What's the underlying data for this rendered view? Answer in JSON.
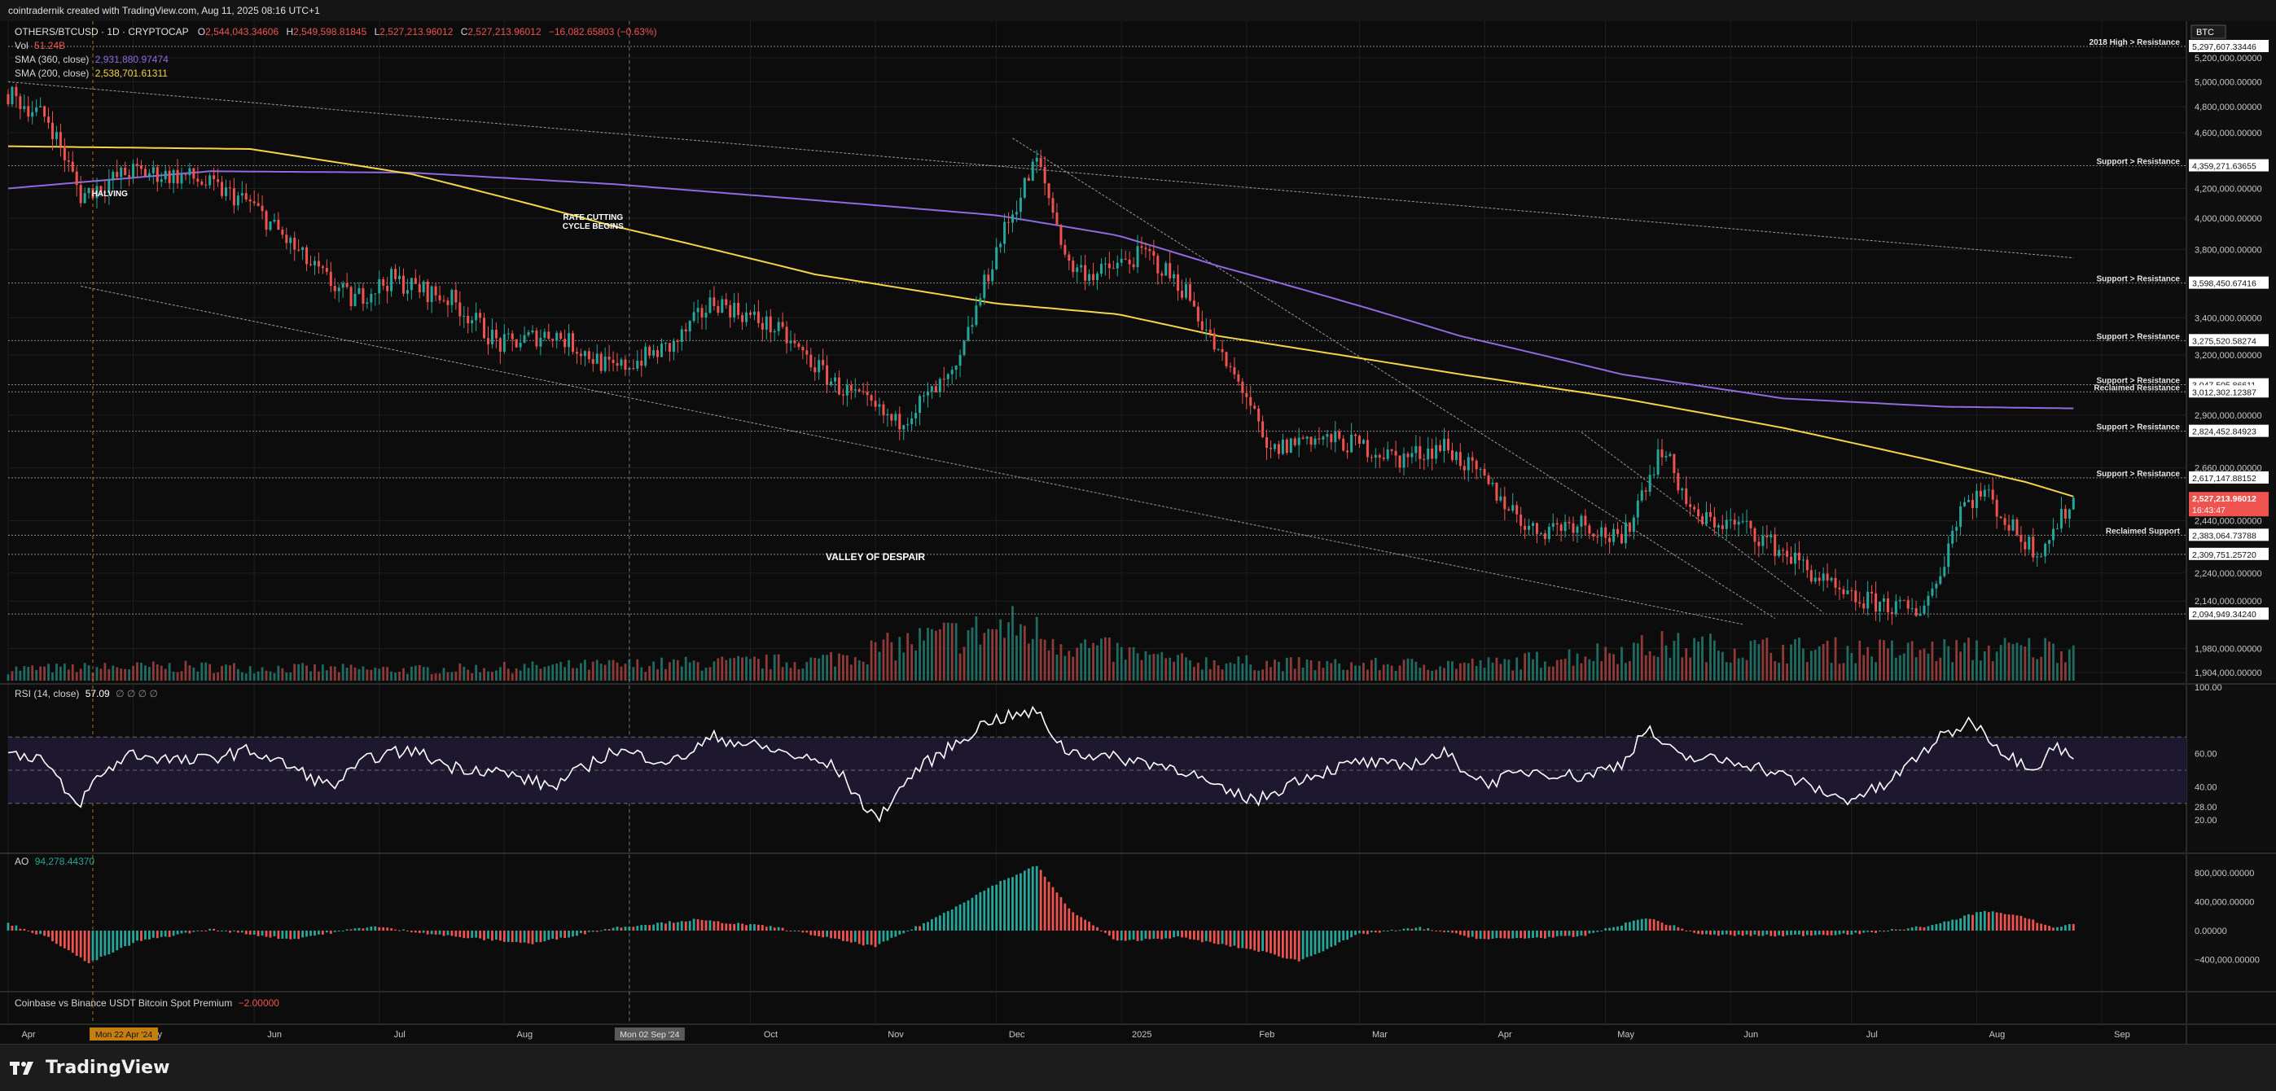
{
  "header": {
    "credit": "cointradernik created with TradingView.com, Aug 11, 2025 08:16 UTC+1"
  },
  "legend": {
    "symbol": "OTHERS/BTCUSD · 1D · CRYPTOCAP",
    "o_label": "O",
    "o": "2,544,043.34606",
    "h_label": "H",
    "h": "2,549,598.81845",
    "l_label": "L",
    "l": "2,527,213.96012",
    "c_label": "C",
    "c": "2,527,213.96012",
    "change": "−16,082.65803 (−0.63%)",
    "vol_label": "Vol",
    "vol": "51.24B",
    "sma360_label": "SMA (360, close)",
    "sma360": "2,931,880.97474",
    "sma200_label": "SMA (200, close)",
    "sma200": "2,538,701.61311",
    "rsi_label": "RSI (14, close)",
    "rsi": "57.09",
    "rsi_extra": "∅ ∅ ∅ ∅",
    "ao_label": "AO",
    "ao": "94,278.44370",
    "premium_label": "Coinbase vs Binance USDT Bitcoin Spot Premium",
    "premium": "−2.00000"
  },
  "footer": {
    "brand": "TradingView"
  },
  "chart_data": {
    "type": "line",
    "price_axis_label": "BTC",
    "price_ticks": [
      "5,200,000.00000",
      "5,000,000.00000",
      "4,800,000.00000",
      "4,600,000.00000",
      "4,200,000.00000",
      "4,000,000.00000",
      "3,800,000.00000",
      "3,400,000.00000",
      "3,200,000.00000",
      "2,900,000.00000",
      "2,660,000.00000",
      "2,440,000.00000",
      "2,240,000.00000",
      "2,140,000.00000",
      "1,980,000.00000",
      "1,904,000.00000"
    ],
    "price_tick_values": [
      5200000,
      5000000,
      4800000,
      4600000,
      4200000,
      4000000,
      3800000,
      3400000,
      3200000,
      2900000,
      2660000,
      2440000,
      2240000,
      2140000,
      1980000,
      1904000
    ],
    "levels": [
      {
        "label": "2018 High > Resistance",
        "value": 5297607,
        "tag": "5,297,607.33446"
      },
      {
        "label": "Support > Resistance",
        "value": 4359271.63655,
        "tag": "4,359,271.63655"
      },
      {
        "label": "Support > Resistance",
        "value": 3598450.67416,
        "tag": "3,598,450.67416"
      },
      {
        "label": "Support > Resistance",
        "value": 3275520.58274,
        "tag": "3,275,520.58274"
      },
      {
        "label": "Support > Resistance",
        "value": 3047505.86611,
        "tag": "3,047,505.86611"
      },
      {
        "label": "Reclaimed Resistance",
        "value": 3012302.12387,
        "tag": "3,012,302.12387"
      },
      {
        "label": "Support > Resistance",
        "value": 2824452.84923,
        "tag": "2,824,452.84923"
      },
      {
        "label": "Support > Resistance",
        "value": 2617147.88152,
        "tag": "2,617,147.88152"
      },
      {
        "label": "Reclaimed Support",
        "value": 2383064.73788,
        "tag": "2,383,064.73788"
      },
      {
        "label": "",
        "value": 2309751.2572,
        "tag": "2,309,751.25720"
      },
      {
        "label": "",
        "value": 2094949.3424,
        "tag": "2,094,949.34240"
      }
    ],
    "current_price": {
      "value": 2527213.96012,
      "tag": "2,527,213.96012",
      "countdown": "16:43:47"
    },
    "annotations": [
      {
        "text": "HALVING",
        "date_index": 5
      },
      {
        "text": "RATE CUTTING\nCYCLE BEGINS",
        "date_index": 145
      },
      {
        "text": "VALLEY OF DESPAIR",
        "date_index": 215
      }
    ],
    "x_labels": [
      "Apr",
      "May",
      "Jun",
      "Jul",
      "Aug",
      "Sep",
      "Oct",
      "Nov",
      "Dec",
      "2025",
      "Feb",
      "Mar",
      "Apr",
      "May",
      "Jun",
      "Jul",
      "Aug",
      "Sep"
    ],
    "x_label_days": [
      0,
      31,
      61,
      92,
      123,
      154,
      184,
      215,
      245,
      276,
      307,
      335,
      366,
      396,
      427,
      457,
      488,
      519
    ],
    "cursor_x_label": "Mon 22 Apr '24",
    "cursor_x_day": 21,
    "cursor2_x_label": "Mon 02 Sep '24",
    "cursor2_x_day": 154,
    "close_anchors": [
      [
        0,
        4900000
      ],
      [
        10,
        4700000
      ],
      [
        18,
        4150000
      ],
      [
        30,
        4320000
      ],
      [
        45,
        4280000
      ],
      [
        60,
        4100000
      ],
      [
        75,
        3700000
      ],
      [
        85,
        3500000
      ],
      [
        95,
        3620000
      ],
      [
        110,
        3500000
      ],
      [
        122,
        3250000
      ],
      [
        135,
        3320000
      ],
      [
        150,
        3120000
      ],
      [
        165,
        3250000
      ],
      [
        175,
        3500000
      ],
      [
        190,
        3340000
      ],
      [
        205,
        3050000
      ],
      [
        220,
        2860000
      ],
      [
        235,
        3100000
      ],
      [
        245,
        3800000
      ],
      [
        255,
        4400000
      ],
      [
        263,
        3700000
      ],
      [
        270,
        3650000
      ],
      [
        282,
        3780000
      ],
      [
        292,
        3550000
      ],
      [
        300,
        3200000
      ],
      [
        307,
        3000000
      ],
      [
        312,
        2720000
      ],
      [
        322,
        2800000
      ],
      [
        335,
        2760000
      ],
      [
        345,
        2700000
      ],
      [
        356,
        2760000
      ],
      [
        366,
        2600000
      ],
      [
        378,
        2400000
      ],
      [
        390,
        2440000
      ],
      [
        400,
        2350000
      ],
      [
        406,
        2600000
      ],
      [
        410,
        2750000
      ],
      [
        418,
        2450000
      ],
      [
        430,
        2420000
      ],
      [
        442,
        2300000
      ],
      [
        455,
        2150000
      ],
      [
        465,
        2130000
      ],
      [
        473,
        2100000
      ],
      [
        478,
        2200000
      ],
      [
        484,
        2500000
      ],
      [
        490,
        2560000
      ],
      [
        496,
        2420000
      ],
      [
        503,
        2320000
      ],
      [
        507,
        2400000
      ],
      [
        512,
        2527214
      ]
    ],
    "sma200_anchors": [
      [
        0,
        4500000
      ],
      [
        60,
        4480000
      ],
      [
        100,
        4300000
      ],
      [
        150,
        3950000
      ],
      [
        200,
        3650000
      ],
      [
        245,
        3480000
      ],
      [
        275,
        3420000
      ],
      [
        300,
        3300000
      ],
      [
        330,
        3200000
      ],
      [
        360,
        3100000
      ],
      [
        400,
        2980000
      ],
      [
        440,
        2840000
      ],
      [
        470,
        2720000
      ],
      [
        500,
        2600000
      ],
      [
        512,
        2538702
      ]
    ],
    "sma360_anchors": [
      [
        0,
        4200000
      ],
      [
        50,
        4320000
      ],
      [
        100,
        4310000
      ],
      [
        150,
        4230000
      ],
      [
        200,
        4120000
      ],
      [
        245,
        4020000
      ],
      [
        275,
        3890000
      ],
      [
        300,
        3700000
      ],
      [
        330,
        3500000
      ],
      [
        360,
        3300000
      ],
      [
        400,
        3100000
      ],
      [
        440,
        2980000
      ],
      [
        480,
        2940000
      ],
      [
        512,
        2931881
      ]
    ],
    "volume_anchors": [
      [
        0,
        0.15
      ],
      [
        40,
        0.18
      ],
      [
        100,
        0.14
      ],
      [
        150,
        0.2
      ],
      [
        200,
        0.25
      ],
      [
        230,
        0.55
      ],
      [
        250,
        0.7
      ],
      [
        265,
        0.45
      ],
      [
        290,
        0.25
      ],
      [
        330,
        0.2
      ],
      [
        370,
        0.22
      ],
      [
        410,
        0.45
      ],
      [
        440,
        0.4
      ],
      [
        470,
        0.38
      ],
      [
        512,
        0.42
      ]
    ],
    "rsi": {
      "levels": [
        70,
        50,
        30
      ],
      "ticks": [
        "100.00",
        "60.00",
        "40.00",
        "28.00",
        "20.00"
      ],
      "tick_values": [
        100,
        60,
        40,
        28,
        20
      ],
      "anchors": [
        [
          0,
          60
        ],
        [
          8,
          58
        ],
        [
          17,
          28
        ],
        [
          22,
          45
        ],
        [
          30,
          60
        ],
        [
          45,
          55
        ],
        [
          60,
          62
        ],
        [
          70,
          52
        ],
        [
          80,
          40
        ],
        [
          90,
          58
        ],
        [
          100,
          62
        ],
        [
          110,
          52
        ],
        [
          120,
          50
        ],
        [
          135,
          40
        ],
        [
          150,
          62
        ],
        [
          165,
          55
        ],
        [
          175,
          70
        ],
        [
          190,
          62
        ],
        [
          205,
          52
        ],
        [
          215,
          20
        ],
        [
          225,
          50
        ],
        [
          235,
          66
        ],
        [
          243,
          80
        ],
        [
          255,
          85
        ],
        [
          262,
          62
        ],
        [
          272,
          58
        ],
        [
          282,
          55
        ],
        [
          292,
          50
        ],
        [
          300,
          38
        ],
        [
          310,
          32
        ],
        [
          320,
          45
        ],
        [
          335,
          55
        ],
        [
          345,
          52
        ],
        [
          356,
          60
        ],
        [
          366,
          42
        ],
        [
          378,
          50
        ],
        [
          390,
          46
        ],
        [
          400,
          54
        ],
        [
          406,
          75
        ],
        [
          414,
          58
        ],
        [
          430,
          55
        ],
        [
          442,
          45
        ],
        [
          455,
          32
        ],
        [
          465,
          40
        ],
        [
          478,
          68
        ],
        [
          487,
          80
        ],
        [
          496,
          58
        ],
        [
          503,
          52
        ],
        [
          507,
          65
        ],
        [
          512,
          57
        ]
      ]
    },
    "ao": {
      "ticks": [
        "800,000.00000",
        "400,000.00000",
        "0.00000",
        "−400,000.00000"
      ],
      "tick_values": [
        800000,
        400000,
        0,
        -400000
      ],
      "anchors": [
        [
          0,
          100000
        ],
        [
          10,
          -100000
        ],
        [
          20,
          -450000
        ],
        [
          32,
          -150000
        ],
        [
          50,
          20000
        ],
        [
          70,
          -120000
        ],
        [
          90,
          60000
        ],
        [
          110,
          -80000
        ],
        [
          130,
          -180000
        ],
        [
          150,
          40000
        ],
        [
          170,
          150000
        ],
        [
          190,
          50000
        ],
        [
          205,
          -120000
        ],
        [
          215,
          -220000
        ],
        [
          230,
          180000
        ],
        [
          245,
          650000
        ],
        [
          255,
          900000
        ],
        [
          263,
          300000
        ],
        [
          275,
          -150000
        ],
        [
          290,
          -90000
        ],
        [
          310,
          -280000
        ],
        [
          320,
          -420000
        ],
        [
          335,
          -50000
        ],
        [
          350,
          40000
        ],
        [
          366,
          -120000
        ],
        [
          390,
          -80000
        ],
        [
          406,
          180000
        ],
        [
          420,
          -60000
        ],
        [
          440,
          -70000
        ],
        [
          460,
          -40000
        ],
        [
          478,
          80000
        ],
        [
          490,
          280000
        ],
        [
          500,
          180000
        ],
        [
          507,
          40000
        ],
        [
          512,
          94278
        ]
      ]
    },
    "trendlines": [
      {
        "from": [
          0,
          5000000
        ],
        "to": [
          512,
          3750000
        ]
      },
      {
        "from": [
          18,
          3580000
        ],
        "to": [
          430,
          2060000
        ]
      },
      {
        "from": [
          249,
          4560000
        ],
        "to": [
          438,
          2080000
        ]
      },
      {
        "from": [
          390,
          2820000
        ],
        "to": [
          450,
          2100000
        ]
      }
    ]
  },
  "colors": {
    "up": "#26a69a",
    "down": "#ef5350",
    "sma200": "#f5d547",
    "sma360": "#8f6ae0",
    "bg": "#0c0c0c",
    "grid": "#1e1e1e",
    "rsi_band": "#1d1830",
    "cursor": "#f39c12"
  }
}
